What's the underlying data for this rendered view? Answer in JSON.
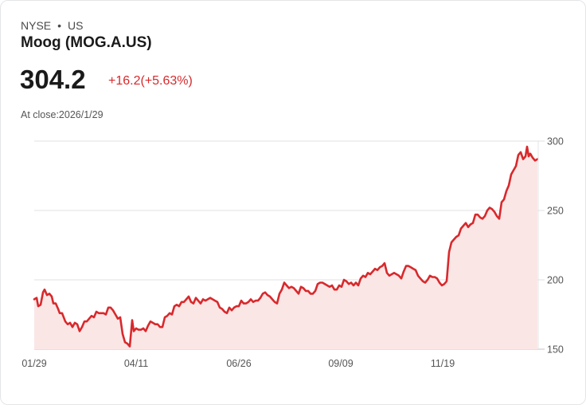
{
  "header": {
    "exchange": "NYSE",
    "separator": "•",
    "region": "US",
    "name": "Moog (MOG.A.US)",
    "price": "304.2",
    "change": "+16.2(+5.63%)",
    "close_label": "At close:2026/1/29"
  },
  "colors": {
    "line": "#d8292c",
    "fill": "#fbe6e6",
    "grid": "#e0e0e0",
    "up": "#d8292c"
  },
  "chart_data": {
    "type": "area",
    "title": "Moog (MOG.A.US)",
    "xlabel": "",
    "ylabel": "",
    "ylim": [
      150,
      300
    ],
    "yticks": [
      150,
      200,
      250,
      300
    ],
    "xticks": [
      "01/29",
      "04/11",
      "06/26",
      "09/09",
      "11/19"
    ],
    "grid": true,
    "legend": null,
    "series": [
      {
        "name": "MOG.A",
        "points": [
          [
            43,
            186
          ],
          [
            46,
            187
          ],
          [
            48,
            181
          ],
          [
            51,
            182
          ],
          [
            54,
            191
          ],
          [
            56,
            193
          ],
          [
            59,
            189
          ],
          [
            62,
            190
          ],
          [
            65,
            188
          ],
          [
            67,
            183
          ],
          [
            70,
            183
          ],
          [
            73,
            179
          ],
          [
            75,
            176
          ],
          [
            78,
            176
          ],
          [
            82,
            170
          ],
          [
            85,
            168
          ],
          [
            88,
            169
          ],
          [
            91,
            166
          ],
          [
            94,
            169
          ],
          [
            97,
            168
          ],
          [
            100,
            163
          ],
          [
            103,
            166
          ],
          [
            106,
            170
          ],
          [
            109,
            170
          ],
          [
            112,
            172
          ],
          [
            115,
            174
          ],
          [
            118,
            173
          ],
          [
            121,
            177
          ],
          [
            124,
            176
          ],
          [
            127,
            176
          ],
          [
            130,
            176
          ],
          [
            133,
            175
          ],
          [
            136,
            180
          ],
          [
            139,
            180
          ],
          [
            142,
            178
          ],
          [
            145,
            175
          ],
          [
            148,
            172
          ],
          [
            151,
            173
          ],
          [
            154,
            161
          ],
          [
            157,
            155
          ],
          [
            160,
            154
          ],
          [
            163,
            152
          ],
          [
            166,
            171
          ],
          [
            168,
            163
          ],
          [
            171,
            165
          ],
          [
            174,
            164
          ],
          [
            177,
            164
          ],
          [
            180,
            165
          ],
          [
            183,
            163
          ],
          [
            186,
            167
          ],
          [
            189,
            170
          ],
          [
            192,
            169
          ],
          [
            195,
            168
          ],
          [
            198,
            168
          ],
          [
            201,
            166
          ],
          [
            204,
            166
          ],
          [
            207,
            173
          ],
          [
            210,
            174
          ],
          [
            213,
            176
          ],
          [
            216,
            175
          ],
          [
            219,
            181
          ],
          [
            222,
            182
          ],
          [
            225,
            181
          ],
          [
            228,
            184
          ],
          [
            231,
            184
          ],
          [
            234,
            186
          ],
          [
            237,
            188
          ],
          [
            240,
            184
          ],
          [
            243,
            183
          ],
          [
            246,
            187
          ],
          [
            249,
            185
          ],
          [
            252,
            183
          ],
          [
            255,
            186
          ],
          [
            258,
            185
          ],
          [
            261,
            186
          ],
          [
            264,
            187
          ],
          [
            267,
            186
          ],
          [
            270,
            185
          ],
          [
            273,
            184
          ],
          [
            276,
            180
          ],
          [
            279,
            179
          ],
          [
            282,
            177
          ],
          [
            285,
            176
          ],
          [
            288,
            180
          ],
          [
            291,
            178
          ],
          [
            294,
            180
          ],
          [
            297,
            181
          ],
          [
            300,
            181
          ],
          [
            303,
            185
          ],
          [
            306,
            183
          ],
          [
            309,
            183
          ],
          [
            312,
            184
          ],
          [
            315,
            186
          ],
          [
            318,
            184
          ],
          [
            321,
            185
          ],
          [
            324,
            185
          ],
          [
            327,
            187
          ],
          [
            330,
            190
          ],
          [
            333,
            191
          ],
          [
            336,
            189
          ],
          [
            339,
            188
          ],
          [
            342,
            186
          ],
          [
            345,
            184
          ],
          [
            348,
            183
          ],
          [
            351,
            190
          ],
          [
            354,
            193
          ],
          [
            357,
            198
          ],
          [
            360,
            196
          ],
          [
            363,
            194
          ],
          [
            366,
            195
          ],
          [
            369,
            194
          ],
          [
            372,
            192
          ],
          [
            375,
            190
          ],
          [
            378,
            195
          ],
          [
            381,
            194
          ],
          [
            384,
            192
          ],
          [
            387,
            192
          ],
          [
            390,
            190
          ],
          [
            393,
            190
          ],
          [
            396,
            192
          ],
          [
            399,
            197
          ],
          [
            402,
            198
          ],
          [
            405,
            198
          ],
          [
            408,
            197
          ],
          [
            411,
            196
          ],
          [
            414,
            195
          ],
          [
            417,
            196
          ],
          [
            420,
            193
          ],
          [
            423,
            193
          ],
          [
            426,
            196
          ],
          [
            429,
            195
          ],
          [
            432,
            200
          ],
          [
            435,
            199
          ],
          [
            438,
            197
          ],
          [
            441,
            198
          ],
          [
            444,
            196
          ],
          [
            447,
            198
          ],
          [
            450,
            196
          ],
          [
            453,
            201
          ],
          [
            456,
            203
          ],
          [
            459,
            202
          ],
          [
            462,
            205
          ],
          [
            465,
            204
          ],
          [
            468,
            206
          ],
          [
            471,
            208
          ],
          [
            474,
            207
          ],
          [
            477,
            209
          ],
          [
            480,
            210
          ],
          [
            483,
            212
          ],
          [
            486,
            205
          ],
          [
            489,
            203
          ],
          [
            492,
            204
          ],
          [
            495,
            205
          ],
          [
            498,
            204
          ],
          [
            501,
            203
          ],
          [
            504,
            201
          ],
          [
            507,
            206
          ],
          [
            510,
            210
          ],
          [
            513,
            210
          ],
          [
            516,
            209
          ],
          [
            519,
            208
          ],
          [
            522,
            207
          ],
          [
            525,
            203
          ],
          [
            528,
            201
          ],
          [
            531,
            199
          ],
          [
            534,
            198
          ],
          [
            537,
            200
          ],
          [
            540,
            203
          ],
          [
            543,
            202
          ],
          [
            546,
            202
          ],
          [
            549,
            201
          ],
          [
            552,
            198
          ],
          [
            555,
            196
          ],
          [
            558,
            197
          ],
          [
            561,
            199
          ],
          [
            564,
            220
          ],
          [
            567,
            227
          ],
          [
            570,
            229
          ],
          [
            573,
            231
          ],
          [
            576,
            232
          ],
          [
            579,
            237
          ],
          [
            582,
            239
          ],
          [
            585,
            241
          ],
          [
            588,
            238
          ],
          [
            591,
            240
          ],
          [
            594,
            241
          ],
          [
            597,
            247
          ],
          [
            600,
            247
          ],
          [
            603,
            245
          ],
          [
            606,
            244
          ],
          [
            609,
            246
          ],
          [
            612,
            250
          ],
          [
            615,
            252
          ],
          [
            618,
            251
          ],
          [
            621,
            249
          ],
          [
            624,
            246
          ],
          [
            627,
            244
          ],
          [
            630,
            256
          ],
          [
            633,
            258
          ],
          [
            636,
            264
          ],
          [
            639,
            268
          ],
          [
            642,
            276
          ],
          [
            645,
            279
          ],
          [
            648,
            282
          ],
          [
            651,
            290
          ],
          [
            654,
            292
          ],
          [
            657,
            287
          ],
          [
            660,
            289
          ],
          [
            662,
            296
          ],
          [
            664,
            289
          ],
          [
            666,
            291
          ],
          [
            669,
            288
          ],
          [
            672,
            286
          ],
          [
            675,
            287
          ]
        ]
      }
    ]
  },
  "axis": {
    "y": [
      "300",
      "250",
      "200",
      "150"
    ],
    "x": [
      "01/29",
      "04/11",
      "06/26",
      "09/09",
      "11/19"
    ]
  }
}
